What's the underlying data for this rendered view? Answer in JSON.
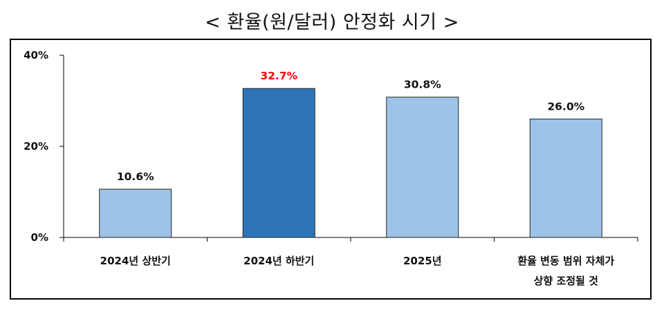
{
  "title": "< 환율(원/달러) 안정화 시기 >",
  "chart_data": {
    "type": "bar",
    "categories": [
      [
        "2024년 상반기"
      ],
      [
        "2024년 하반기"
      ],
      [
        "2025년"
      ],
      [
        "환율 변동 범위 자체가",
        "상향 조정될 것"
      ]
    ],
    "values": [
      10.6,
      32.7,
      30.8,
      26.0
    ],
    "value_labels": [
      "10.6%",
      "32.7%",
      "30.8%",
      "26.0%"
    ],
    "bar_colors": [
      "#9dc3e6",
      "#2e75b6",
      "#9dc3e6",
      "#9dc3e6"
    ],
    "label_colors": [
      "#111111",
      "#ff0000",
      "#111111",
      "#111111"
    ],
    "y_ticks": [
      0,
      20,
      40
    ],
    "y_tick_labels": [
      "0%",
      "20%",
      "40%"
    ],
    "ylim": [
      0,
      40
    ],
    "grid": false,
    "legend": "none"
  }
}
